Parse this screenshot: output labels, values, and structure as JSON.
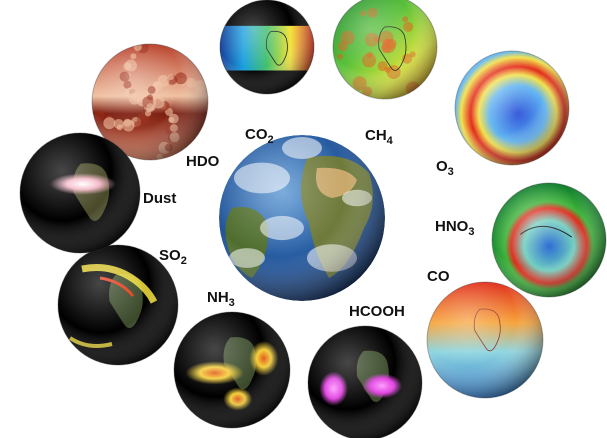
{
  "center": {
    "name": "earth-globe"
  },
  "globes": [
    {
      "id": "hdo",
      "label": "HDO",
      "main": "HDO",
      "sub": "",
      "palette": "red-speckle",
      "colors": [
        "#7a1a0c",
        "#b8402a",
        "#d97a5a",
        "#f0c0a0"
      ]
    },
    {
      "id": "co2",
      "label": "CO2",
      "main": "CO",
      "sub": "2",
      "palette": "rainbow-band",
      "colors": [
        "#1a3f9c",
        "#19a0e0",
        "#43c06a",
        "#f4e43a",
        "#e2331f"
      ]
    },
    {
      "id": "ch4",
      "label": "CH4",
      "main": "CH",
      "sub": "4",
      "palette": "green-yellow",
      "colors": [
        "#1b8a2e",
        "#5bc13a",
        "#d6e33a",
        "#f2a623"
      ]
    },
    {
      "id": "o3",
      "label": "O3",
      "main": "O",
      "sub": "3",
      "palette": "ozone-hole",
      "colors": [
        "#2a4fd8",
        "#5fb4f2",
        "#f2e24a",
        "#e3281a"
      ]
    },
    {
      "id": "hno3",
      "label": "HNO3",
      "main": "HNO",
      "sub": "3",
      "palette": "green-polar",
      "colors": [
        "#0d7a2c",
        "#3fb43a",
        "#73d0c0",
        "#1a5fd0"
      ]
    },
    {
      "id": "co",
      "label": "CO",
      "main": "CO",
      "sub": "",
      "palette": "red-blue",
      "colors": [
        "#e0301e",
        "#f7a33a",
        "#8fd6e0",
        "#2f79c8"
      ]
    },
    {
      "id": "hcooh",
      "label": "HCOOH",
      "main": "HCOOH",
      "sub": "",
      "palette": "magenta-spots",
      "colors": [
        "#000000",
        "#e040e0",
        "#ff9cff"
      ]
    },
    {
      "id": "nh3",
      "label": "NH3",
      "main": "NH",
      "sub": "3",
      "palette": "yellow-spots",
      "colors": [
        "#000000",
        "#f5d03a",
        "#e25a18"
      ]
    },
    {
      "id": "so2",
      "label": "SO2",
      "main": "SO",
      "sub": "2",
      "palette": "yellow-plume",
      "colors": [
        "#000000",
        "#f7e23a",
        "#e33a16"
      ]
    },
    {
      "id": "dust",
      "label": "Dust",
      "main": "Dust",
      "sub": "",
      "palette": "pink-dust",
      "colors": [
        "#000000",
        "#f4b8c8",
        "#ffffff"
      ]
    }
  ]
}
